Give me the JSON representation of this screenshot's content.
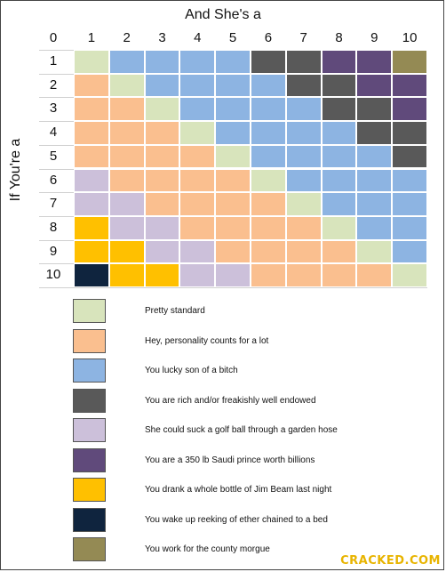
{
  "chart_data": {
    "type": "heatmap",
    "title": "And She's a",
    "xlabel": "And She's a",
    "ylabel": "If You're a",
    "x_ticks": [
      "0",
      "1",
      "2",
      "3",
      "4",
      "5",
      "6",
      "7",
      "8",
      "9",
      "10"
    ],
    "y_ticks": [
      "1",
      "2",
      "3",
      "4",
      "5",
      "6",
      "7",
      "8",
      "9",
      "10"
    ],
    "categories": [
      {
        "id": "A",
        "label": "Pretty standard",
        "color": "#d8e4bc"
      },
      {
        "id": "B",
        "label": "Hey, personality counts for a lot",
        "color": "#fabf8f"
      },
      {
        "id": "C",
        "label": "You lucky son of a bitch",
        "color": "#8db4e2"
      },
      {
        "id": "D",
        "label": "You are rich and/or freakishly well endowed",
        "color": "#595959"
      },
      {
        "id": "E",
        "label": "She could suck a golf ball through a garden hose",
        "color": "#ccc0da"
      },
      {
        "id": "F",
        "label": "You are a 350 lb Saudi prince worth billions",
        "color": "#604a7b"
      },
      {
        "id": "G",
        "label": "You drank a whole bottle of Jim Beam last night",
        "color": "#ffc000"
      },
      {
        "id": "H",
        "label": "You wake up reeking of ether chained to a bed",
        "color": "#0f243e"
      },
      {
        "id": "I",
        "label": "You work for the county morgue",
        "color": "#948a54"
      }
    ],
    "cells": [
      [
        "A",
        "C",
        "C",
        "C",
        "C",
        "D",
        "D",
        "F",
        "F",
        "I"
      ],
      [
        "B",
        "A",
        "C",
        "C",
        "C",
        "C",
        "D",
        "D",
        "F",
        "F"
      ],
      [
        "B",
        "B",
        "A",
        "C",
        "C",
        "C",
        "C",
        "D",
        "D",
        "F"
      ],
      [
        "B",
        "B",
        "B",
        "A",
        "C",
        "C",
        "C",
        "C",
        "D",
        "D"
      ],
      [
        "B",
        "B",
        "B",
        "B",
        "A",
        "C",
        "C",
        "C",
        "C",
        "D"
      ],
      [
        "E",
        "B",
        "B",
        "B",
        "B",
        "A",
        "C",
        "C",
        "C",
        "C"
      ],
      [
        "E",
        "E",
        "B",
        "B",
        "B",
        "B",
        "A",
        "C",
        "C",
        "C"
      ],
      [
        "G",
        "E",
        "E",
        "B",
        "B",
        "B",
        "B",
        "A",
        "C",
        "C"
      ],
      [
        "G",
        "G",
        "E",
        "E",
        "B",
        "B",
        "B",
        "B",
        "A",
        "C"
      ],
      [
        "H",
        "G",
        "G",
        "E",
        "E",
        "B",
        "B",
        "B",
        "B",
        "A"
      ]
    ]
  },
  "logo_text": "CRACKED.COM"
}
